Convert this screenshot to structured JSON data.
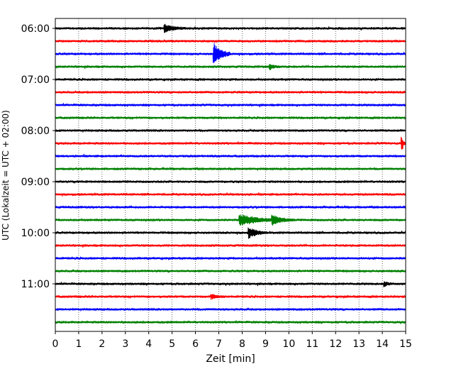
{
  "chart_data": {
    "type": "line",
    "title": "",
    "xlabel": "Zeit  [min]",
    "ylabel": "UTC (Lokalzeit = UTC + 02:00)",
    "xlim": [
      0,
      15
    ],
    "x_ticks": [
      "0",
      "1",
      "2",
      "3",
      "4",
      "5",
      "6",
      "7",
      "8",
      "9",
      "10",
      "11",
      "12",
      "13",
      "14",
      "15"
    ],
    "y_ticks": [
      {
        "label": "06:00",
        "row": 0
      },
      {
        "label": "07:00",
        "row": 4
      },
      {
        "label": "08:00",
        "row": 8
      },
      {
        "label": "09:00",
        "row": 12
      },
      {
        "label": "10:00",
        "row": 16
      },
      {
        "label": "11:00",
        "row": 20
      }
    ],
    "grid_x": true,
    "row_interval_min": 15,
    "row_count": 24,
    "row_colors": [
      "#000000",
      "#ff0000",
      "#0000ff",
      "#008000"
    ],
    "events": [
      {
        "row": 0,
        "minute": 4.7,
        "amplitude": 0.35,
        "duration_min": 0.9
      },
      {
        "row": 2,
        "minute": 6.8,
        "amplitude": 1.0,
        "duration_min": 0.7
      },
      {
        "row": 3,
        "minute": 9.2,
        "amplitude": 0.2,
        "duration_min": 0.5
      },
      {
        "row": 9,
        "minute": 14.85,
        "amplitude": 0.55,
        "duration_min": 0.15
      },
      {
        "row": 15,
        "minute": 7.9,
        "amplitude": 0.55,
        "duration_min": 1.6
      },
      {
        "row": 15,
        "minute": 9.3,
        "amplitude": 0.45,
        "duration_min": 0.9
      },
      {
        "row": 16,
        "minute": 8.3,
        "amplitude": 0.45,
        "duration_min": 0.8
      },
      {
        "row": 21,
        "minute": 6.7,
        "amplitude": 0.2,
        "duration_min": 0.6
      },
      {
        "row": 20,
        "minute": 14.1,
        "amplitude": 0.2,
        "duration_min": 0.3
      }
    ]
  }
}
